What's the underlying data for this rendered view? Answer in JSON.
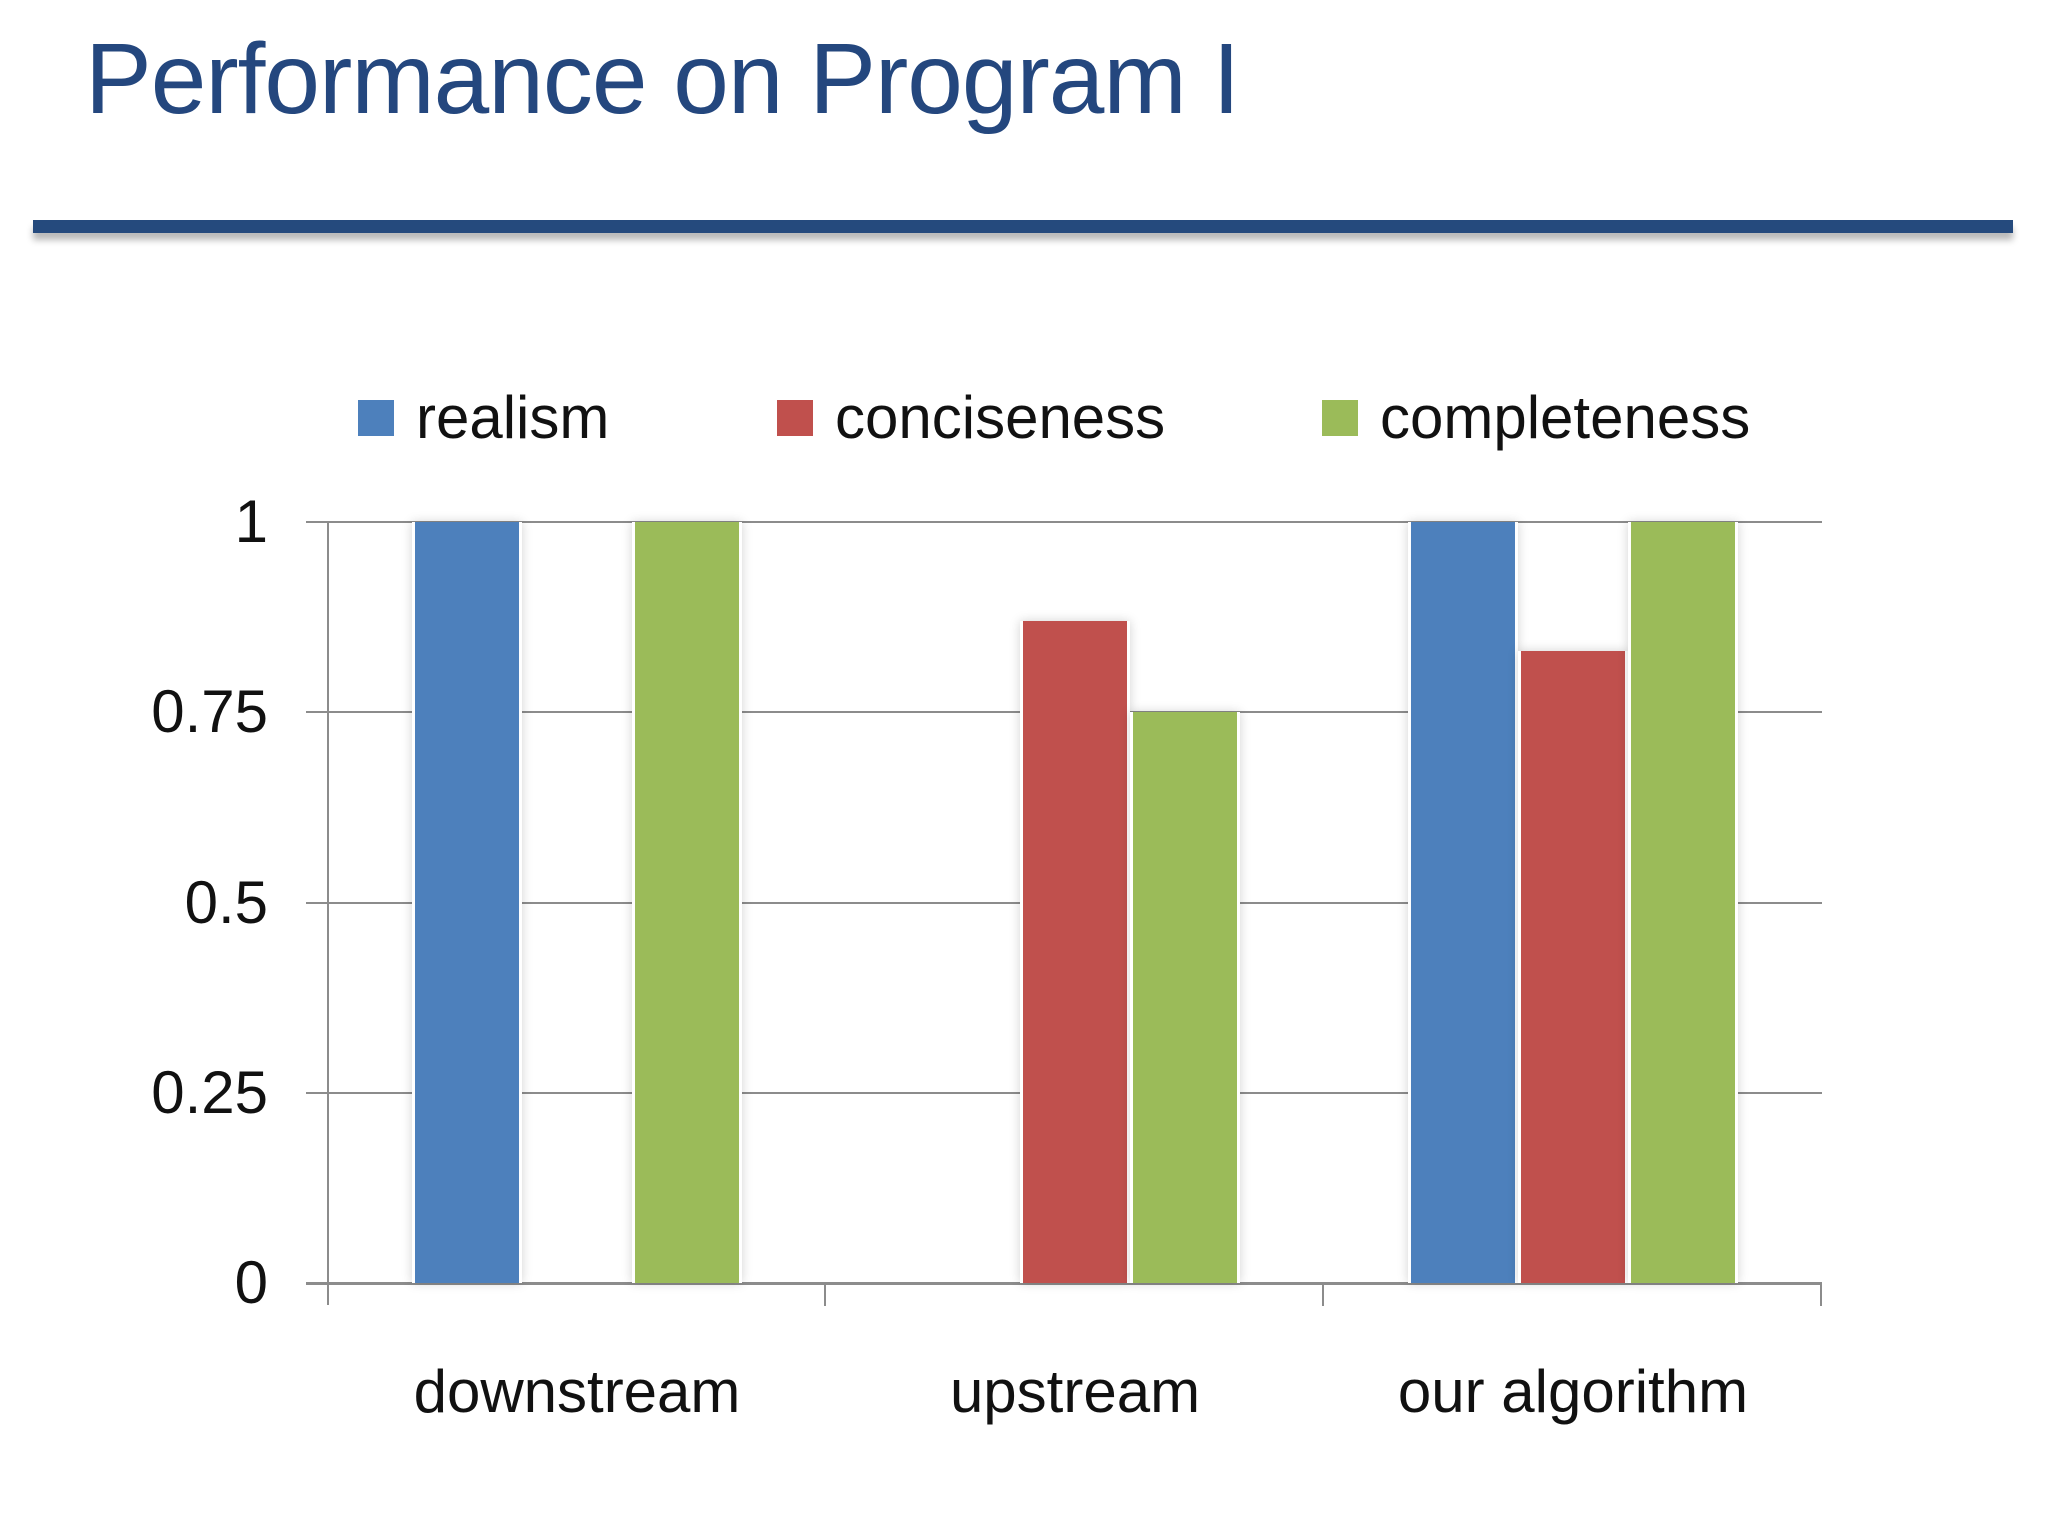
{
  "slide": {
    "title": "Performance on Program I",
    "title_color": "#24477E",
    "rule_color": "#254A7D"
  },
  "chart_data": {
    "type": "bar",
    "title": "",
    "categories": [
      "downstream",
      "upstream",
      "our algorithm"
    ],
    "series": [
      {
        "name": "realism",
        "color": "#4D80BC",
        "values": [
          1,
          0,
          1
        ]
      },
      {
        "name": "conciseness",
        "color": "#C0504D",
        "values": [
          0,
          0.87,
          0.83
        ]
      },
      {
        "name": "completeness",
        "color": "#9BBB59",
        "values": [
          1,
          0.75,
          1
        ]
      }
    ],
    "ylim": [
      0,
      1
    ],
    "ytick_values": [
      0,
      0.25,
      0.5,
      0.75,
      1
    ],
    "yticks": [
      "0",
      "0.25",
      "0.5",
      "0.75",
      "1"
    ],
    "grid": true,
    "legend_position": "top",
    "axis_color": "#8C8C8C",
    "text_color": "#111111"
  }
}
